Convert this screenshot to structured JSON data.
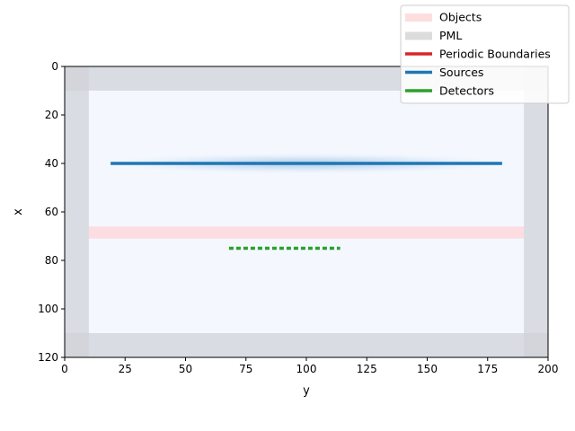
{
  "chart_data": {
    "type": "heatmap",
    "xlabel": "y",
    "ylabel": "x",
    "xlim": [
      0,
      200
    ],
    "ylim": [
      120,
      0
    ],
    "x_ticks": [
      0,
      25,
      50,
      75,
      100,
      125,
      150,
      175,
      200
    ],
    "y_ticks": [
      0,
      20,
      40,
      60,
      80,
      100,
      120
    ],
    "grid": false,
    "legend_position": "top-right",
    "legend": [
      {
        "label": "Objects",
        "color": "#fddede",
        "style": "band"
      },
      {
        "label": "PML",
        "color": "#dcdcdc",
        "style": "band"
      },
      {
        "label": "Periodic Boundaries",
        "color": "#d62728",
        "style": "line"
      },
      {
        "label": "Sources",
        "color": "#1f77b4",
        "style": "line"
      },
      {
        "label": "Detectors",
        "color": "#2ca02c",
        "style": "line"
      }
    ],
    "background_color": "#f4f8fe",
    "pml": {
      "thickness": 10,
      "color": "#d0d3d8"
    },
    "objects": [
      {
        "x_range": [
          66,
          71
        ],
        "y_range": [
          10,
          190
        ],
        "color": "#fbdde2"
      }
    ],
    "sources": [
      {
        "x": 40,
        "y_range": [
          19,
          181
        ],
        "color": "#1f77b4"
      }
    ],
    "detectors": [
      {
        "x": 75,
        "y_range": [
          68,
          114
        ],
        "color": "#2ca02c"
      }
    ]
  }
}
